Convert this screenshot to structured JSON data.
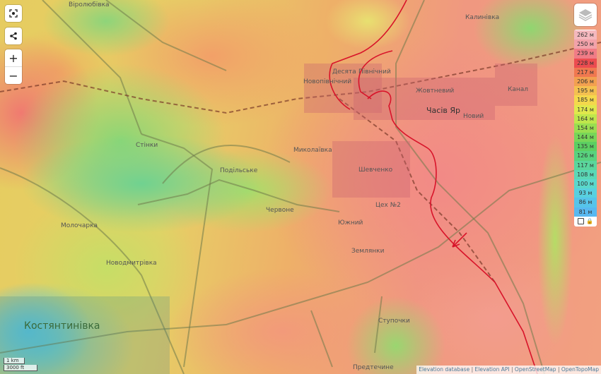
{
  "controls": {
    "fullscreen_icon": "fullscreen-icon",
    "share_icon": "share-icon",
    "zoom_in": "+",
    "zoom_out": "−",
    "layers_icon": "layers-icon"
  },
  "legend": {
    "items": [
      {
        "label": "262 м",
        "color": "#f4b8be"
      },
      {
        "label": "250 м",
        "color": "#f2a2aa"
      },
      {
        "label": "239 м",
        "color": "#f07c86"
      },
      {
        "label": "228 м",
        "color": "#ec4c50"
      },
      {
        "label": "217 м",
        "color": "#f07850"
      },
      {
        "label": "206 м",
        "color": "#f2a050"
      },
      {
        "label": "195 м",
        "color": "#f4c050"
      },
      {
        "label": "185 м",
        "color": "#f4d84c"
      },
      {
        "label": "174 м",
        "color": "#e0e84c"
      },
      {
        "label": "164 м",
        "color": "#bfe64c"
      },
      {
        "label": "154 м",
        "color": "#9ade50"
      },
      {
        "label": "144 м",
        "color": "#78d658"
      },
      {
        "label": "135 м",
        "color": "#5ccf62"
      },
      {
        "label": "126 м",
        "color": "#58d27e"
      },
      {
        "label": "117 м",
        "color": "#5ad69c"
      },
      {
        "label": "108 м",
        "color": "#5ad8b6"
      },
      {
        "label": "100 м",
        "color": "#5ad8cc"
      },
      {
        "label": "93 м",
        "color": "#58d0e0"
      },
      {
        "label": "86 м",
        "color": "#56c4ea"
      },
      {
        "label": "81 м",
        "color": "#58b8f0"
      }
    ],
    "checkbox_icon": "checkbox-icon",
    "lock_icon": "lock-icon"
  },
  "places": [
    {
      "name": "Віролюбівка",
      "type": "village"
    },
    {
      "name": "Калинівка",
      "type": "village"
    },
    {
      "name": "Десята",
      "type": "district"
    },
    {
      "name": "Північний",
      "type": "district"
    },
    {
      "name": "Новопівнічний",
      "type": "district"
    },
    {
      "name": "Жовтневий",
      "type": "district"
    },
    {
      "name": "Часів Яр",
      "type": "town"
    },
    {
      "name": "Новий",
      "type": "district"
    },
    {
      "name": "Канал",
      "type": "district"
    },
    {
      "name": "Стінки",
      "type": "village"
    },
    {
      "name": "Миколаївка",
      "type": "village"
    },
    {
      "name": "Подільське",
      "type": "village"
    },
    {
      "name": "Шевченко",
      "type": "district"
    },
    {
      "name": "Червоне",
      "type": "village"
    },
    {
      "name": "Цех №2",
      "type": "district"
    },
    {
      "name": "Южний",
      "type": "district"
    },
    {
      "name": "Молочарка",
      "type": "village"
    },
    {
      "name": "Новодмитрівка",
      "type": "village"
    },
    {
      "name": "Землянки",
      "type": "village"
    },
    {
      "name": "Костянтинівка",
      "type": "city"
    },
    {
      "name": "Ступочки",
      "type": "village"
    },
    {
      "name": "Предтечине",
      "type": "village"
    }
  ],
  "frontline_color": "#d8142a",
  "scale": {
    "metric": "1 km",
    "imperial": "3000 ft"
  },
  "attribution": [
    "Elevation database",
    "Elevation API",
    "OpenStreetMap",
    "OpenTopoMap"
  ]
}
